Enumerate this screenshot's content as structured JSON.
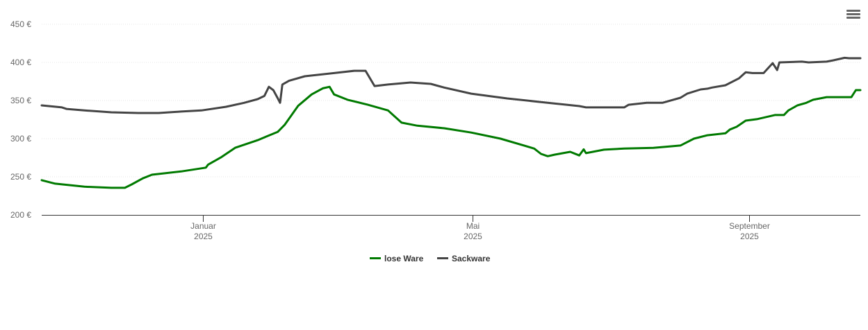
{
  "chart_data": {
    "type": "line",
    "title": "",
    "xlabel": "",
    "ylabel": "",
    "ylim": [
      200,
      450
    ],
    "yticks": [
      200,
      250,
      300,
      350,
      400,
      450
    ],
    "ytick_suffix": " €",
    "xlim_days": [
      0,
      364
    ],
    "xticks": [
      {
        "day": 71.6,
        "label": "Januar",
        "sub": "2025"
      },
      {
        "day": 191.7,
        "label": "Mai",
        "sub": "2025"
      },
      {
        "day": 314.5,
        "label": "September",
        "sub": "2025"
      }
    ],
    "grid": true,
    "legend": "bottom-center",
    "series": [
      {
        "name": "lose Ware",
        "color": "#007a00",
        "points": [
          [
            0,
            245.5
          ],
          [
            6,
            241
          ],
          [
            19,
            237
          ],
          [
            31,
            235.5
          ],
          [
            37,
            235.5
          ],
          [
            40,
            240
          ],
          [
            45,
            248
          ],
          [
            49,
            252.7
          ],
          [
            62,
            257
          ],
          [
            73,
            262
          ],
          [
            74,
            266
          ],
          [
            80,
            276
          ],
          [
            86,
            288
          ],
          [
            96,
            298
          ],
          [
            105,
            309
          ],
          [
            108,
            318
          ],
          [
            114,
            343
          ],
          [
            120,
            358
          ],
          [
            125,
            366
          ],
          [
            128,
            368
          ],
          [
            130,
            358
          ],
          [
            136,
            351
          ],
          [
            145,
            344.5
          ],
          [
            154,
            337
          ],
          [
            157,
            329
          ],
          [
            160,
            321
          ],
          [
            167,
            317
          ],
          [
            179,
            313.6
          ],
          [
            191,
            308
          ],
          [
            204,
            300
          ],
          [
            219,
            287
          ],
          [
            222,
            280
          ],
          [
            225,
            277
          ],
          [
            228,
            279
          ],
          [
            235,
            282.7
          ],
          [
            239,
            278
          ],
          [
            241,
            286
          ],
          [
            242,
            281
          ],
          [
            250,
            285.5
          ],
          [
            259,
            287
          ],
          [
            272,
            288
          ],
          [
            284,
            291
          ],
          [
            290,
            300
          ],
          [
            296,
            304.5
          ],
          [
            304,
            307
          ],
          [
            306,
            312
          ],
          [
            309,
            315.5
          ],
          [
            313,
            323.6
          ],
          [
            318,
            325.5
          ],
          [
            326,
            331
          ],
          [
            330,
            331
          ],
          [
            332,
            337
          ],
          [
            336,
            343.6
          ],
          [
            340,
            347
          ],
          [
            343,
            351
          ],
          [
            349,
            354.5
          ],
          [
            360,
            354.5
          ],
          [
            362,
            363.6
          ],
          [
            364,
            363.6
          ]
        ]
      },
      {
        "name": "Sackware",
        "color": "#444444",
        "points": [
          [
            0,
            343.6
          ],
          [
            9,
            341
          ],
          [
            11,
            339
          ],
          [
            19,
            337
          ],
          [
            31,
            334.5
          ],
          [
            43,
            333.6
          ],
          [
            52,
            333.6
          ],
          [
            62,
            335.5
          ],
          [
            71,
            337
          ],
          [
            82,
            341.8
          ],
          [
            90,
            347
          ],
          [
            96,
            351.8
          ],
          [
            99,
            356
          ],
          [
            101,
            368
          ],
          [
            103,
            363.6
          ],
          [
            105,
            352.7
          ],
          [
            106,
            347
          ],
          [
            107,
            371
          ],
          [
            110,
            376
          ],
          [
            117,
            381.8
          ],
          [
            130,
            386
          ],
          [
            139,
            389
          ],
          [
            144,
            389
          ],
          [
            148,
            369
          ],
          [
            154,
            371
          ],
          [
            164,
            373.6
          ],
          [
            173,
            371.8
          ],
          [
            179,
            367
          ],
          [
            191,
            359
          ],
          [
            207,
            352.7
          ],
          [
            222,
            348
          ],
          [
            239,
            342.7
          ],
          [
            242,
            341
          ],
          [
            259,
            341
          ],
          [
            261,
            344.5
          ],
          [
            269,
            347
          ],
          [
            276,
            347
          ],
          [
            284,
            353.6
          ],
          [
            287,
            359
          ],
          [
            293,
            364.5
          ],
          [
            296,
            365.5
          ],
          [
            298,
            367
          ],
          [
            304,
            370
          ],
          [
            310,
            379
          ],
          [
            313,
            387
          ],
          [
            316,
            386
          ],
          [
            321,
            386
          ],
          [
            325,
            399
          ],
          [
            327,
            390
          ],
          [
            328,
            400
          ],
          [
            338,
            401
          ],
          [
            341,
            400
          ],
          [
            349,
            401
          ],
          [
            352,
            402.7
          ],
          [
            357,
            406
          ],
          [
            359,
            405.5
          ],
          [
            364,
            405.5
          ]
        ]
      }
    ]
  }
}
